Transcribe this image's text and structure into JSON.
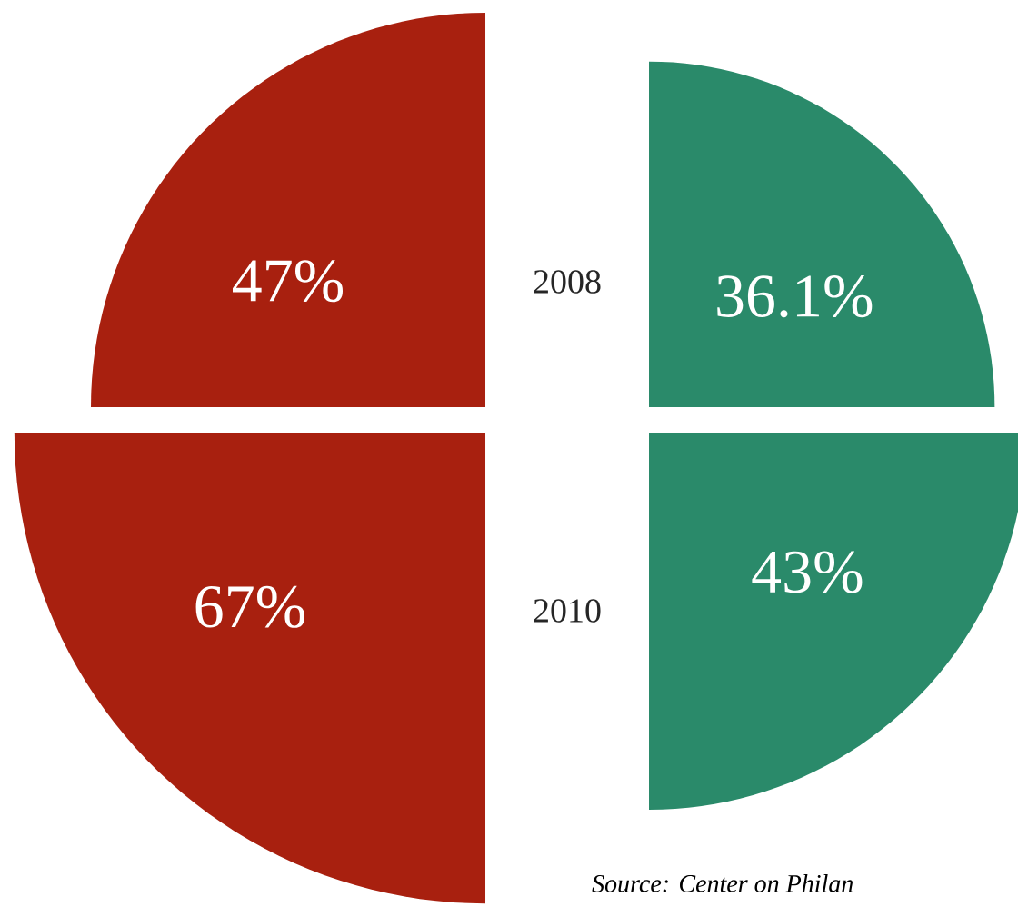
{
  "chart_data": {
    "type": "other",
    "categories": [
      "2008",
      "2010"
    ],
    "series": [
      {
        "color": "#a8200f",
        "values": [
          47,
          67
        ],
        "value_labels": [
          "47%",
          "67%"
        ]
      },
      {
        "color": "#2a8a6a",
        "values": [
          36.1,
          43
        ],
        "value_labels": [
          "36.1%",
          "43%"
        ]
      }
    ],
    "annotations": [
      "Source: Center on Philan"
    ]
  }
}
